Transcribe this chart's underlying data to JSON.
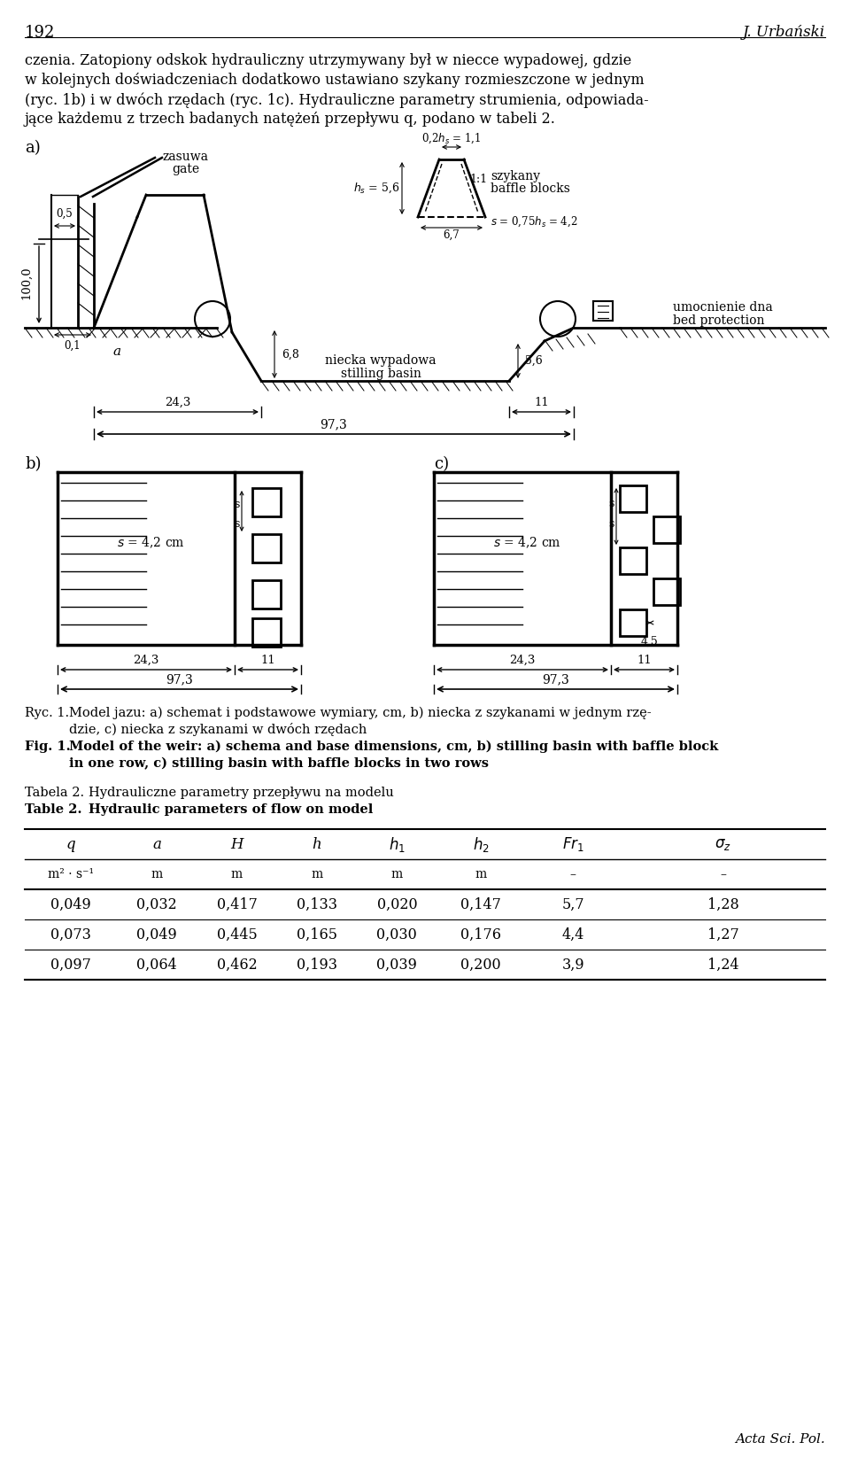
{
  "page_num": "192",
  "author": "J. Urbański",
  "para1": "czenia. Zatopiony odskok hydrauliczny utrzymywany był w niecce wypadowej, gdzie",
  "para2": "w kolejnych doświadczeniach dodatkowo ustawiano szykany rozmieszczone w jednym",
  "para3": "(ryc. 1b) i w dwóch rzędach (ryc. 1c). Hydrauliczne parametry strumienia, odpowiada-",
  "para4": "jące każdemu z trzech badanych natężeń przepływu q, podano w tabeli 2.",
  "table_data": [
    [
      0.049,
      0.032,
      0.417,
      0.133,
      0.02,
      0.147,
      5.7,
      1.28
    ],
    [
      0.073,
      0.049,
      0.445,
      0.165,
      0.03,
      0.176,
      4.4,
      1.27
    ],
    [
      0.097,
      0.064,
      0.462,
      0.193,
      0.039,
      0.2,
      3.9,
      1.24
    ]
  ],
  "bg_color": "#ffffff",
  "text_color": "#000000",
  "line_color": "#000000"
}
